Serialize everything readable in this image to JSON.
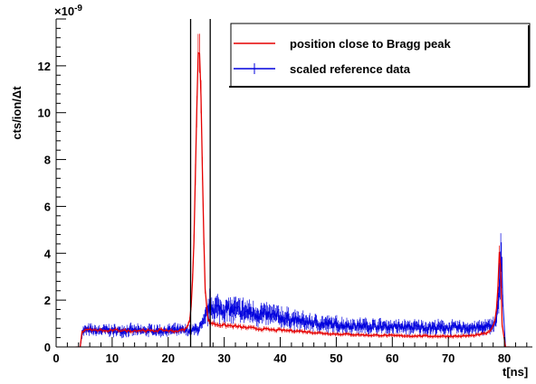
{
  "chart_data": {
    "type": "line",
    "ylabel": "cts/ion/Δt",
    "xlabel": "t[ns]",
    "y_exponent": "×10",
    "y_exponent_power": "-9",
    "xlim": [
      0,
      85
    ],
    "ylim": [
      0,
      14
    ],
    "x_ticks": [
      0,
      10,
      20,
      30,
      40,
      50,
      60,
      70,
      80
    ],
    "y_ticks": [
      0,
      2,
      4,
      6,
      8,
      10,
      12
    ],
    "grid": false,
    "legend_position": "top-right",
    "vertical_lines": [
      24.0,
      27.5
    ],
    "colors": {
      "red": "#e60000",
      "blue": "#0000dd",
      "axis": "#000000"
    },
    "series": [
      {
        "name": "position close to Bragg peak",
        "color": "#e60000",
        "x": [
          3.5,
          4.3,
          4.6,
          5,
          6,
          7,
          8,
          9,
          10,
          11,
          12,
          13,
          14,
          15,
          16,
          17,
          18,
          19,
          20,
          21,
          22,
          23,
          23.5,
          24,
          24.3,
          24.6,
          24.9,
          25.1,
          25.3,
          25.5,
          25.7,
          25.9,
          26.1,
          26.3,
          26.5,
          26.8,
          27.1,
          27.5,
          28,
          29,
          30,
          31,
          32,
          33,
          34,
          35,
          36,
          37,
          38,
          39,
          40,
          41,
          42,
          43,
          44,
          45,
          46,
          47,
          48,
          49,
          50,
          51,
          52,
          53,
          54,
          55,
          56,
          57,
          58,
          59,
          60,
          61,
          62,
          63,
          64,
          65,
          66,
          67,
          68,
          69,
          70,
          71,
          72,
          73,
          74,
          75,
          76,
          77,
          77.5,
          78,
          78.4,
          78.7,
          79.0,
          79.2,
          79.4,
          79.6,
          79.8,
          80.2,
          81
        ],
        "y": [
          0,
          0,
          0.6,
          0.7,
          0.75,
          0.7,
          0.72,
          0.68,
          0.7,
          0.72,
          0.7,
          0.68,
          0.7,
          0.72,
          0.7,
          0.68,
          0.7,
          0.72,
          0.7,
          0.68,
          0.7,
          0.75,
          0.85,
          1.4,
          2.5,
          4.5,
          7.5,
          10.5,
          12.5,
          13.8,
          12.8,
          10.5,
          7.5,
          5.0,
          3.0,
          1.8,
          1.2,
          1.05,
          1.0,
          0.95,
          0.92,
          0.9,
          0.88,
          0.85,
          0.82,
          0.8,
          0.78,
          0.76,
          0.74,
          0.72,
          0.72,
          0.7,
          0.7,
          0.68,
          0.66,
          0.64,
          0.62,
          0.6,
          0.58,
          0.57,
          0.55,
          0.55,
          0.54,
          0.53,
          0.52,
          0.51,
          0.5,
          0.5,
          0.5,
          0.49,
          0.48,
          0.48,
          0.48,
          0.47,
          0.47,
          0.47,
          0.47,
          0.46,
          0.46,
          0.46,
          0.46,
          0.46,
          0.46,
          0.47,
          0.48,
          0.5,
          0.55,
          0.6,
          0.7,
          0.85,
          1.2,
          2.0,
          3.2,
          4.5,
          3.0,
          1.0,
          0.3,
          0,
          0
        ]
      },
      {
        "name": "scaled reference data",
        "color": "#0000dd",
        "x": [
          3.5,
          4.3,
          4.6,
          5,
          6,
          7,
          8,
          9,
          10,
          11,
          12,
          13,
          14,
          15,
          16,
          17,
          18,
          19,
          20,
          21,
          22,
          23,
          23.5,
          24,
          24.5,
          25,
          25.5,
          26,
          26.5,
          27,
          27.5,
          28,
          29,
          30,
          31,
          32,
          33,
          34,
          35,
          36,
          37,
          38,
          39,
          40,
          41,
          42,
          43,
          44,
          45,
          46,
          47,
          48,
          49,
          50,
          51,
          52,
          53,
          54,
          55,
          56,
          57,
          58,
          59,
          60,
          61,
          62,
          63,
          64,
          65,
          66,
          67,
          68,
          69,
          70,
          71,
          72,
          73,
          74,
          75,
          76,
          77,
          77.5,
          78,
          78.4,
          78.7,
          79.0,
          79.2,
          79.4,
          79.6,
          79.8,
          80.2,
          81
        ],
        "y": [
          0,
          0,
          0.65,
          0.7,
          0.72,
          0.68,
          0.7,
          0.72,
          0.7,
          0.68,
          0.7,
          0.72,
          0.7,
          0.68,
          0.7,
          0.72,
          0.7,
          0.68,
          0.7,
          0.72,
          0.7,
          0.7,
          0.7,
          0.7,
          0.72,
          0.75,
          0.8,
          0.9,
          1.1,
          1.5,
          1.8,
          1.7,
          1.62,
          1.6,
          1.58,
          1.55,
          1.52,
          1.5,
          1.45,
          1.42,
          1.38,
          1.35,
          1.32,
          1.28,
          1.22,
          1.18,
          1.12,
          1.08,
          1.05,
          1.02,
          1.0,
          0.98,
          0.96,
          0.95,
          0.94,
          0.92,
          0.91,
          0.9,
          0.9,
          0.89,
          0.88,
          0.88,
          0.87,
          0.86,
          0.85,
          0.85,
          0.84,
          0.84,
          0.84,
          0.83,
          0.83,
          0.83,
          0.83,
          0.82,
          0.82,
          0.82,
          0.82,
          0.82,
          0.82,
          0.83,
          0.85,
          0.88,
          0.95,
          1.05,
          1.3,
          2.0,
          3.2,
          4.6,
          3.1,
          1.0,
          0.3,
          0
        ]
      }
    ]
  }
}
